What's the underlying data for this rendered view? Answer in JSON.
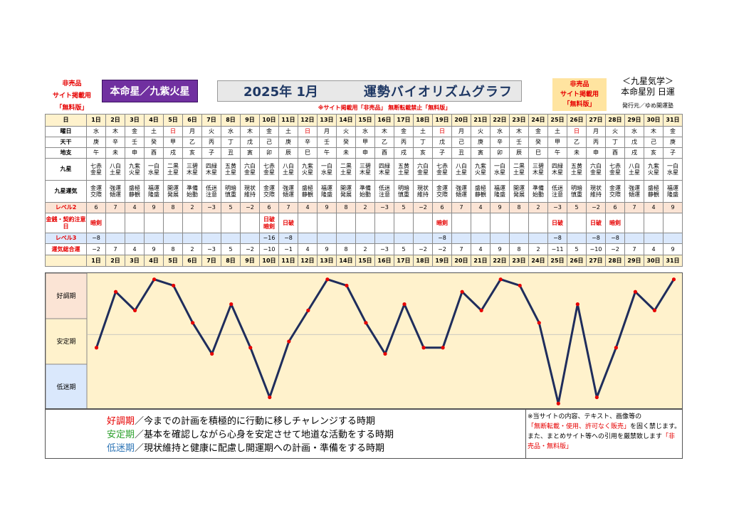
{
  "header": {
    "left_notice": [
      "非売品",
      "サイト掲載用",
      "「無料版」"
    ],
    "badge": "本命星／九紫火星",
    "year": "2025年 1月",
    "title": "運勢バイオリズムグラフ",
    "right_notice": [
      "非売品",
      "サイト掲載用",
      "「無料版」"
    ],
    "far_right": [
      "＜九星気学＞",
      "本命星別 日運"
    ],
    "publisher": "発行元／ゆめ開運塾",
    "notice": "※サイト掲載用「非売品」 無断転載禁止「無料版」"
  },
  "table": {
    "labels": {
      "date": "日",
      "weekday": "曜日",
      "tenkan": "天干",
      "chishi": "地支",
      "kyusei": "九星",
      "unsei": "九星運気",
      "level2": "レベル2",
      "kinsen": "金銭・契約注意日",
      "level3": "レベル3",
      "total": "運気総合運"
    },
    "dates": [
      "1日",
      "2日",
      "3日",
      "4日",
      "5日",
      "6日",
      "7日",
      "8日",
      "9日",
      "10日",
      "11日",
      "12日",
      "13日",
      "14日",
      "15日",
      "16日",
      "17日",
      "18日",
      "19日",
      "20日",
      "21日",
      "22日",
      "23日",
      "24日",
      "25日",
      "26日",
      "27日",
      "28日",
      "29日",
      "30日",
      "31日"
    ],
    "weekdays": [
      "水",
      "木",
      "金",
      "土",
      "日",
      "月",
      "火",
      "水",
      "木",
      "金",
      "土",
      "日",
      "月",
      "火",
      "水",
      "木",
      "金",
      "土",
      "日",
      "月",
      "火",
      "水",
      "木",
      "金",
      "土",
      "日",
      "月",
      "火",
      "水",
      "木",
      "金"
    ],
    "tenkan": [
      "庚",
      "辛",
      "壬",
      "癸",
      "甲",
      "乙",
      "丙",
      "丁",
      "戊",
      "己",
      "庚",
      "辛",
      "壬",
      "癸",
      "甲",
      "乙",
      "丙",
      "丁",
      "戊",
      "己",
      "庚",
      "辛",
      "壬",
      "癸",
      "甲",
      "乙",
      "丙",
      "丁",
      "戊",
      "己",
      "庚"
    ],
    "chishi": [
      "午",
      "未",
      "申",
      "酉",
      "戌",
      "亥",
      "子",
      "丑",
      "寅",
      "卯",
      "辰",
      "巳",
      "午",
      "未",
      "申",
      "酉",
      "戌",
      "亥",
      "子",
      "丑",
      "寅",
      "卯",
      "辰",
      "巳",
      "午",
      "未",
      "申",
      "酉",
      "戌",
      "亥",
      "子"
    ],
    "kyusei": [
      "七赤金星",
      "八白土星",
      "九紫火星",
      "一白水星",
      "二黒土星",
      "三碧木星",
      "四緑木星",
      "五黄土星",
      "六白金星",
      "七赤金星",
      "八白土星",
      "九紫火星",
      "一白水星",
      "二黒土星",
      "三碧木星",
      "四緑木星",
      "五黄土星",
      "六白金星",
      "七赤金星",
      "八白土星",
      "九紫火星",
      "一白水星",
      "二黒土星",
      "三碧木星",
      "四緑木星",
      "五黄土星",
      "六白金星",
      "七赤金星",
      "八白土星",
      "九紫火星",
      "一白水星"
    ],
    "unsei": [
      "金運交際",
      "強運傾運",
      "盛極静観",
      "福運隆盛",
      "開運発展",
      "準備始動",
      "低迷注意",
      "明暗慎重",
      "現状維持",
      "金運交際",
      "強運傾運",
      "盛極静観",
      "福運隆盛",
      "開運発展",
      "準備始動",
      "低迷注意",
      "明暗慎重",
      "現状維持",
      "金運交際",
      "強運傾運",
      "盛極静観",
      "福運隆盛",
      "開運発展",
      "準備始動",
      "低迷注意",
      "明暗慎重",
      "現状維持",
      "金運交際",
      "強運傾運",
      "盛極静観",
      "福運隆盛"
    ],
    "level2": [
      "6",
      "7",
      "4",
      "9",
      "8",
      "2",
      "−3",
      "5",
      "−2",
      "6",
      "7",
      "4",
      "9",
      "8",
      "2",
      "−3",
      "5",
      "−2",
      "6",
      "7",
      "4",
      "9",
      "8",
      "2",
      "−3",
      "5",
      "−2",
      "6",
      "7",
      "4",
      "9"
    ],
    "kinsen": [
      "暗剣",
      "",
      "",
      "",
      "",
      "",
      "",
      "",
      "",
      "日破暗剣",
      "日破",
      "",
      "",
      "",
      "",
      "",
      "",
      "",
      "暗剣",
      "",
      "",
      "",
      "",
      "",
      "日破",
      "",
      "日破",
      "暗剣",
      "",
      "",
      ""
    ],
    "level3": [
      "−8",
      "",
      "",
      "",
      "",
      "",
      "",
      "",
      "",
      "−16",
      "−8",
      "",
      "",
      "",
      "",
      "",
      "",
      "",
      "−8",
      "",
      "",
      "",
      "",
      "",
      "−8",
      "",
      "−8",
      "−8",
      "",
      "",
      ""
    ],
    "total": [
      "−2",
      "7",
      "4",
      "9",
      "8",
      "2",
      "−3",
      "5",
      "−2",
      "−10",
      "−1",
      "4",
      "9",
      "8",
      "2",
      "−3",
      "5",
      "−2",
      "−2",
      "7",
      "4",
      "9",
      "8",
      "2",
      "−11",
      "5",
      "−10",
      "−2",
      "7",
      "4",
      "9"
    ]
  },
  "chart_data": {
    "type": "line",
    "x": [
      1,
      2,
      3,
      4,
      5,
      6,
      7,
      8,
      9,
      10,
      11,
      12,
      13,
      14,
      15,
      16,
      17,
      18,
      19,
      20,
      21,
      22,
      23,
      24,
      25,
      26,
      27,
      28,
      29,
      30,
      31
    ],
    "values": [
      -2,
      7,
      4,
      9,
      8,
      2,
      -3,
      5,
      -2,
      -10,
      -1,
      4,
      9,
      8,
      2,
      -3,
      5,
      -2,
      -2,
      7,
      4,
      9,
      8,
      2,
      -11,
      5,
      -10,
      -2,
      7,
      4,
      9
    ],
    "ylim": [
      -12,
      10
    ],
    "zones": [
      "好調期",
      "安定期",
      "低迷期"
    ],
    "colors": {
      "line": "#1f2d5c",
      "marker": "#e60000",
      "bg": "#fff2cc",
      "zone_good": "#fbe4d5",
      "zone_stable": "#fff2cc",
      "zone_low": "#dae8fc",
      "sat": "#e60000"
    }
  },
  "footer": {
    "line1_term": "好調期",
    "line1_text": "／今までの計画を積極的に行動に移しチャレンジする時期",
    "line2_term": "安定期",
    "line2_text": "／基本を確認しながら心身を安定させて地道な活動をする時期",
    "line3_term": "低迷期",
    "line3_text": "／現状維持と健康に配慮し開運期への計画・準備をする時期",
    "note_1": "※当サイトの内容、テキスト、画像等の",
    "note_2": "「無断転載・使用、許可なく販売」",
    "note_3": "を固く禁じます。また、まとめサイト等への引用を厳禁致します",
    "note_4": "「非売品・無料版」"
  }
}
